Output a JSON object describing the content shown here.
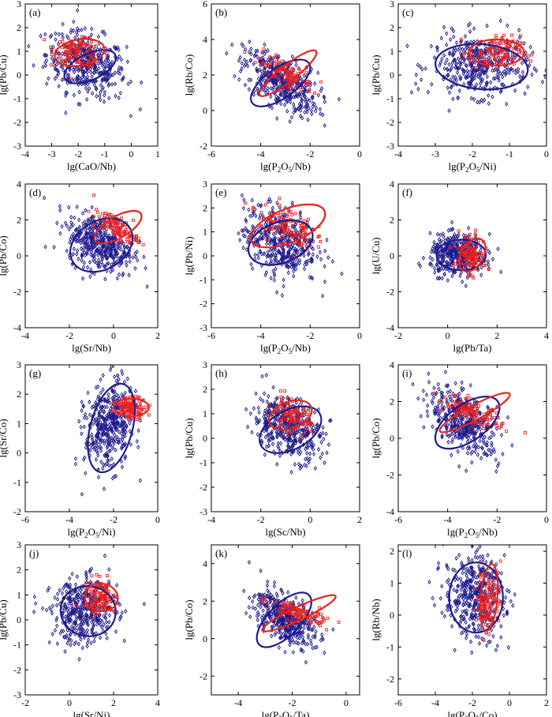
{
  "figure": {
    "description_free": true
  },
  "colors": {
    "group_a": "#1e1a8c",
    "group_b": "#e8231e",
    "axis": "#000000"
  },
  "chart_data": [
    {
      "type": "scatter",
      "panel": "(a)",
      "xlabel": "lg(CaO/Nb)",
      "ylabel": "lg(Pb/Cu)",
      "xlim": [
        -4,
        1
      ],
      "ylim": [
        -3,
        3
      ],
      "xticks": [
        "-4",
        "-3",
        "-2",
        "-1",
        "0",
        "1"
      ],
      "yticks": [
        "-3",
        "-2",
        "-1",
        "0",
        "1",
        "2",
        "3"
      ],
      "series": [
        {
          "name": "blue",
          "center": [
            -1.7,
            0.45
          ],
          "spread": [
            0.75,
            0.7
          ],
          "rho": -0.3,
          "ellipse": {
            "cx": -1.55,
            "cy": 0.35,
            "rx": 1.05,
            "ry": 0.55,
            "angle": -25
          }
        },
        {
          "name": "red",
          "center": [
            -2.0,
            0.95
          ],
          "spread": [
            0.45,
            0.3
          ],
          "rho": -0.3,
          "ellipse": {
            "cx": -1.95,
            "cy": 0.95,
            "rx": 0.95,
            "ry": 0.55,
            "angle": -10
          }
        }
      ]
    },
    {
      "type": "scatter",
      "panel": "(b)",
      "xlabel": "lg(P",
      "xlabel_sub": "2",
      "xlabel_rest": "O",
      "xlabel_sub2": "5",
      "xlabel_end": "/Nb)",
      "ylabel": "lg(Rb/Co)",
      "xlim": [
        -6,
        0
      ],
      "ylim": [
        -2,
        6
      ],
      "xticks": [
        "-6",
        "-4",
        "-2",
        "0"
      ],
      "yticks": [
        "-2",
        "0",
        "2",
        "4",
        "6"
      ],
      "series": [
        {
          "name": "blue",
          "center": [
            -3.2,
            1.6
          ],
          "spread": [
            0.75,
            0.9
          ],
          "rho": -0.55,
          "ellipse": {
            "cx": -3.2,
            "cy": 1.55,
            "rx": 1.4,
            "ry": 0.85,
            "angle": -35
          }
        },
        {
          "name": "red",
          "center": [
            -3.0,
            2.1
          ],
          "spread": [
            0.55,
            0.5
          ],
          "rho": -0.7,
          "ellipse": {
            "cx": -2.9,
            "cy": 2.1,
            "rx": 1.45,
            "ry": 0.45,
            "angle": -38
          }
        }
      ]
    },
    {
      "type": "scatter",
      "panel": "(c)",
      "xlabel": "lg(P",
      "xlabel_sub": "2",
      "xlabel_rest": "O",
      "xlabel_sub2": "5",
      "xlabel_end": "/Ni)",
      "ylabel": "lg(Pb/Cu)",
      "xlim": [
        -4,
        0
      ],
      "ylim": [
        -3,
        3
      ],
      "xticks": [
        "-4",
        "-3",
        "-2",
        "-1",
        "0"
      ],
      "yticks": [
        "-3",
        "-2",
        "-1",
        "0",
        "1",
        "2",
        "3"
      ],
      "series": [
        {
          "name": "blue",
          "center": [
            -1.8,
            0.4
          ],
          "spread": [
            0.65,
            0.65
          ],
          "rho": 0.0,
          "ellipse": {
            "cx": -1.75,
            "cy": 0.35,
            "rx": 1.25,
            "ry": 0.95,
            "angle": 5
          }
        },
        {
          "name": "red",
          "center": [
            -1.4,
            0.95
          ],
          "spread": [
            0.35,
            0.35
          ],
          "rho": 0.0,
          "ellipse": {
            "cx": -1.35,
            "cy": 0.95,
            "rx": 0.75,
            "ry": 0.55,
            "angle": 0
          }
        }
      ]
    },
    {
      "type": "scatter",
      "panel": "(d)",
      "xlabel": "lg(Sr/Nb)",
      "ylabel": "lg(Pb/Co)",
      "xlim": [
        -4,
        2
      ],
      "ylim": [
        -4,
        4
      ],
      "xticks": [
        "-4",
        "-2",
        "0",
        "2"
      ],
      "yticks": [
        "-4",
        "-2",
        "0",
        "2",
        "4"
      ],
      "series": [
        {
          "name": "blue",
          "center": [
            -0.6,
            0.7
          ],
          "spread": [
            0.75,
            0.8
          ],
          "rho": -0.35,
          "ellipse": {
            "cx": -0.55,
            "cy": 0.6,
            "rx": 1.5,
            "ry": 1.35,
            "angle": -30
          }
        },
        {
          "name": "red",
          "center": [
            0.1,
            1.6
          ],
          "spread": [
            0.5,
            0.45
          ],
          "rho": -0.7,
          "ellipse": {
            "cx": 0.2,
            "cy": 1.6,
            "rx": 1.2,
            "ry": 0.6,
            "angle": -30
          }
        }
      ]
    },
    {
      "type": "scatter",
      "panel": "(e)",
      "xlabel": "lg(P",
      "xlabel_sub": "2",
      "xlabel_rest": "O",
      "xlabel_sub2": "5",
      "xlabel_end": "/Nb)",
      "ylabel": "lg(Pb/Ni)",
      "xlim": [
        -6,
        0
      ],
      "ylim": [
        -3,
        3
      ],
      "xticks": [
        "-6",
        "-4",
        "-2",
        "0"
      ],
      "yticks": [
        "-3",
        "-2",
        "-1",
        "0",
        "1",
        "2",
        "3"
      ],
      "series": [
        {
          "name": "blue",
          "center": [
            -3.2,
            0.6
          ],
          "spread": [
            0.75,
            0.75
          ],
          "rho": -0.25,
          "ellipse": {
            "cx": -3.2,
            "cy": 0.55,
            "rx": 1.35,
            "ry": 0.85,
            "angle": -20
          }
        },
        {
          "name": "red",
          "center": [
            -3.0,
            1.3
          ],
          "spread": [
            0.55,
            0.45
          ],
          "rho": -0.4,
          "ellipse": {
            "cx": -2.9,
            "cy": 1.25,
            "rx": 1.6,
            "ry": 0.7,
            "angle": -22
          }
        }
      ]
    },
    {
      "type": "scatter",
      "panel": "(f)",
      "xlabel": "lg(Pb/Ta)",
      "ylabel": "lg(U/Cu)",
      "xlim": [
        -2,
        4
      ],
      "ylim": [
        -4,
        4
      ],
      "xticks": [
        "-2",
        "0",
        "2",
        "4"
      ],
      "yticks": [
        "-4",
        "-2",
        "0",
        "2",
        "4"
      ],
      "series": [
        {
          "name": "blue",
          "center": [
            0.4,
            0.05
          ],
          "spread": [
            0.55,
            0.55
          ],
          "rho": 0.0,
          "ellipse": {
            "cx": 0.55,
            "cy": 0.05,
            "rx": 1.0,
            "ry": 0.85,
            "angle": 0
          }
        },
        {
          "name": "red",
          "center": [
            0.9,
            0.1
          ],
          "spread": [
            0.28,
            0.55
          ],
          "rho": -0.3,
          "ellipse": {
            "cx": 1.0,
            "cy": 0.05,
            "rx": 0.45,
            "ry": 1.0,
            "angle": 30
          }
        }
      ]
    },
    {
      "type": "scatter",
      "panel": "(g)",
      "xlabel": "lg(P",
      "xlabel_sub": "2",
      "xlabel_rest": "O",
      "xlabel_sub2": "5",
      "xlabel_end": "/Ni)",
      "ylabel": "lg(Sr/Co)",
      "xlim": [
        -6,
        0
      ],
      "ylim": [
        -2,
        3
      ],
      "xticks": [
        "-6",
        "-4",
        "-2",
        "0"
      ],
      "yticks": [
        "-2",
        "-1",
        "0",
        "1",
        "2",
        "3"
      ],
      "series": [
        {
          "name": "blue",
          "center": [
            -2.2,
            0.9
          ],
          "spread": [
            0.55,
            0.75
          ],
          "rho": 0.2,
          "ellipse": {
            "cx": -2.1,
            "cy": 0.85,
            "rx": 0.95,
            "ry": 1.55,
            "angle": 15
          }
        },
        {
          "name": "red",
          "center": [
            -1.2,
            1.55
          ],
          "spread": [
            0.35,
            0.18
          ],
          "rho": 0.0,
          "ellipse": {
            "cx": -1.2,
            "cy": 1.55,
            "rx": 0.8,
            "ry": 0.3,
            "angle": 0
          }
        }
      ]
    },
    {
      "type": "scatter",
      "panel": "(h)",
      "xlabel": "lg(Sc/Nb)",
      "ylabel": "lg(Pb/Cu)",
      "xlim": [
        -4,
        2
      ],
      "ylim": [
        -3,
        3
      ],
      "xticks": [
        "-4",
        "-2",
        "0",
        "2"
      ],
      "yticks": [
        "-3",
        "-2",
        "-1",
        "0",
        "1",
        "2",
        "3"
      ],
      "series": [
        {
          "name": "blue",
          "center": [
            -0.9,
            0.45
          ],
          "spread": [
            0.7,
            0.65
          ],
          "rho": -0.35,
          "ellipse": {
            "cx": -0.8,
            "cy": 0.35,
            "rx": 1.35,
            "ry": 0.8,
            "angle": -28
          }
        },
        {
          "name": "red",
          "center": [
            -0.8,
            0.95
          ],
          "spread": [
            0.4,
            0.35
          ],
          "rho": -0.4,
          "ellipse": {
            "cx": -0.8,
            "cy": 0.95,
            "rx": 0.9,
            "ry": 0.55,
            "angle": -20
          }
        }
      ]
    },
    {
      "type": "scatter",
      "panel": "(i)",
      "xlabel": "lg(P",
      "xlabel_sub": "2",
      "xlabel_rest": "O",
      "xlabel_sub2": "5",
      "xlabel_end": "/Nb)",
      "ylabel": "lg(Pb/Co)",
      "xlim": [
        -6,
        0
      ],
      "ylim": [
        -4,
        4
      ],
      "xticks": [
        "-6",
        "-4",
        "-2",
        "0"
      ],
      "yticks": [
        "-4",
        "-2",
        "0",
        "2",
        "4"
      ],
      "series": [
        {
          "name": "blue",
          "center": [
            -3.3,
            0.9
          ],
          "spread": [
            0.7,
            0.9
          ],
          "rho": -0.5,
          "ellipse": {
            "cx": -3.2,
            "cy": 0.85,
            "rx": 1.5,
            "ry": 1.0,
            "angle": -35
          }
        },
        {
          "name": "red",
          "center": [
            -3.0,
            1.4
          ],
          "spread": [
            0.6,
            0.45
          ],
          "rho": -0.75,
          "ellipse": {
            "cx": -2.9,
            "cy": 1.4,
            "rx": 1.6,
            "ry": 0.4,
            "angle": -28
          }
        }
      ]
    },
    {
      "type": "scatter",
      "panel": "(j)",
      "xlabel": "lg(Sr/Ni)",
      "ylabel": "lg(Pb/Cu)",
      "xlim": [
        -2,
        4
      ],
      "ylim": [
        -3,
        3
      ],
      "xticks": [
        "-2",
        "0",
        "2",
        "4"
      ],
      "yticks": [
        "-3",
        "-2",
        "-1",
        "0",
        "1",
        "2",
        "3"
      ],
      "series": [
        {
          "name": "blue",
          "center": [
            0.7,
            0.35
          ],
          "spread": [
            0.75,
            0.65
          ],
          "rho": 0.1,
          "ellipse": {
            "cx": 0.85,
            "cy": 0.35,
            "rx": 1.25,
            "ry": 1.0,
            "angle": 10
          }
        },
        {
          "name": "red",
          "center": [
            1.4,
            0.9
          ],
          "spread": [
            0.35,
            0.35
          ],
          "rho": 0.0,
          "ellipse": {
            "cx": 1.45,
            "cy": 0.9,
            "rx": 0.75,
            "ry": 0.55,
            "angle": 10
          }
        }
      ]
    },
    {
      "type": "scatter",
      "panel": "(k)",
      "xlabel": "lg(P",
      "xlabel_sub": "2",
      "xlabel_rest": "O",
      "xlabel_sub2": "5",
      "xlabel_end": "/Ta)",
      "ylabel": "lg(Pb/Co)",
      "xlim": [
        -5,
        0.5
      ],
      "ylim": [
        -3,
        5
      ],
      "xticks": [
        "-4",
        "-2",
        "0"
      ],
      "yticks": [
        "-2",
        "0",
        "2",
        "4"
      ],
      "series": [
        {
          "name": "blue",
          "center": [
            -2.3,
            1.1
          ],
          "spread": [
            0.55,
            0.75
          ],
          "rho": -0.55,
          "ellipse": {
            "cx": -2.3,
            "cy": 1.0,
            "rx": 1.3,
            "ry": 0.85,
            "angle": -45
          }
        },
        {
          "name": "red",
          "center": [
            -1.8,
            1.4
          ],
          "spread": [
            0.55,
            0.35
          ],
          "rho": -0.75,
          "ellipse": {
            "cx": -1.75,
            "cy": 1.35,
            "rx": 1.5,
            "ry": 0.35,
            "angle": -25
          }
        }
      ]
    },
    {
      "type": "scatter",
      "panel": "(l)",
      "xlabel": "lg(P",
      "xlabel_sub": "2",
      "xlabel_rest": "O",
      "xlabel_sub2": "5",
      "xlabel_end": "/Co)",
      "ylabel": "lg(Rb/Nb)",
      "xlim": [
        -6,
        2
      ],
      "ylim": [
        -2.5,
        2.2
      ],
      "xticks": [
        "-6",
        "-4",
        "-2",
        "0",
        "2"
      ],
      "yticks": [
        "-2",
        "-1",
        "0",
        "1",
        "2"
      ],
      "series": [
        {
          "name": "blue",
          "center": [
            -1.9,
            0.6
          ],
          "spread": [
            0.8,
            0.65
          ],
          "rho": -0.1,
          "ellipse": {
            "cx": -1.8,
            "cy": 0.55,
            "rx": 1.45,
            "ry": 1.1,
            "angle": 0
          }
        },
        {
          "name": "red",
          "center": [
            -1.1,
            0.5
          ],
          "spread": [
            0.32,
            0.5
          ],
          "rho": 0.0,
          "ellipse": {
            "cx": -1.1,
            "cy": 0.55,
            "rx": 0.45,
            "ry": 1.05,
            "angle": 5
          }
        }
      ]
    }
  ]
}
